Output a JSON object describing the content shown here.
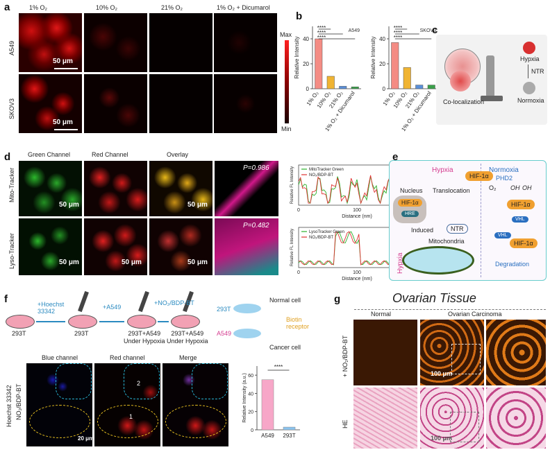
{
  "panels": {
    "a": "a",
    "b": "b",
    "c": "c",
    "d": "d",
    "e": "e",
    "f": "f",
    "g": "g"
  },
  "a": {
    "cols": [
      "1% O₂",
      "10% O₂",
      "21% O₂",
      "1% O₂ + Dicumarol"
    ],
    "rows": [
      "A549",
      "SKOV3"
    ],
    "scale": "50 μm",
    "cbar_max": "Max",
    "cbar_min": "Min"
  },
  "b": {
    "ylabel": "Relative Intensity",
    "sig": "****",
    "categories": [
      "1% O₂",
      "10% O₂",
      "21% O₂",
      "1% O₂ + Dicumarol"
    ]
  },
  "c": {
    "hypxia": "Hypxia",
    "ntr": "NTR",
    "normoxia": "Normoxia",
    "coloc": "Co-localization"
  },
  "d": {
    "cols": [
      "Green Channel",
      "Red Channel",
      "Overlay"
    ],
    "rows": [
      "Mito-Tracker",
      "Lyso-Tracker"
    ],
    "p1": "P=0.986",
    "p2": "P=0.482",
    "scale": "50 μm",
    "ylabel": "Relative FL Intensity",
    "xlabel": "Distance (nm)",
    "legend1": [
      "MitoTracker Green",
      "NO₂/BDP-BT"
    ],
    "legend2": [
      "LysoTracker Green",
      "NO₂/BDP-BT"
    ],
    "xticks": [
      "0",
      "100",
      "200"
    ]
  },
  "e": {
    "hypxia": "Hypxia",
    "normoxia": "Normoxia",
    "hif": "HIF-1α",
    "translocation": "Translocation",
    "nucleus": "Nucleus",
    "hre": "HRE",
    "ntr": "NTR",
    "induced": "Induced",
    "mito": "Mitochondria",
    "phd2": "PHD2",
    "o2": "O₂",
    "oh": "OH",
    "vhl": "VHL",
    "degradation": "Degradation",
    "hypxia_side": "Hypxia"
  },
  "f": {
    "steps": [
      "293T",
      "293T",
      "293T+A549\nUnder Hypoxia",
      "293T+A549\nUnder Hypoxia"
    ],
    "arrows": [
      "+Hoechst\n33342",
      "+A549",
      "+NO₂/BDP-BT"
    ],
    "cell_293t": "293T",
    "cell_a549": "A549",
    "normal": "Normal cell",
    "biotin": "Biotin\nreceptor",
    "cancer": "Cancer cell",
    "channels": [
      "Blue channel",
      "Red channel",
      "Merge"
    ],
    "row1": "Hoechst 33342",
    "row2": "NO₂/BDP-BT",
    "scale": "20 μm",
    "ylabel": "Relative Intensity (a.u.)",
    "sig": "****",
    "mark1": "1",
    "mark2": "2"
  },
  "g": {
    "title": "Ovarian Tissue",
    "normal": "Normal",
    "carcinoma": "Ovarian Carcinoma",
    "row1": "+ NO₂/BDP-BT",
    "row2": "HE",
    "scale": "100 μm"
  },
  "chart_data": [
    {
      "type": "bar",
      "title": "A549",
      "ylabel": "Relative Intensity",
      "categories": [
        "1% O₂",
        "10% O₂",
        "21% O₂",
        "1% O₂ + Dicumarol"
      ],
      "values": [
        40,
        10,
        2,
        1.5
      ],
      "ylim": [
        0,
        50
      ],
      "yticks": [
        0,
        20,
        40
      ],
      "colors": [
        "#f48c84",
        "#f0b432",
        "#5a8fd8",
        "#3aa04a"
      ]
    },
    {
      "type": "bar",
      "title": "SKOV3",
      "ylabel": "Relative Intensity",
      "categories": [
        "1% O₂",
        "10% O₂",
        "21% O₂",
        "1% O₂ + Dicumarol"
      ],
      "values": [
        37,
        17,
        3,
        3
      ],
      "ylim": [
        0,
        50
      ],
      "yticks": [
        0,
        20,
        40
      ],
      "colors": [
        "#f48c84",
        "#f0b432",
        "#5a8fd8",
        "#3aa04a"
      ]
    },
    {
      "type": "bar",
      "ylabel": "Relative Intensity (a.u.)",
      "categories": [
        "A549",
        "293T"
      ],
      "values": [
        55,
        3
      ],
      "ylim": [
        0,
        70
      ],
      "yticks": [
        0,
        20,
        40,
        60
      ],
      "colors": [
        "#f7a7c8",
        "#8ac4ef"
      ]
    },
    {
      "type": "line",
      "xlabel": "Distance (nm)",
      "ylabel": "Relative FL Intensity",
      "x": [
        0,
        200
      ],
      "series": [
        {
          "name": "MitoTracker Green"
        },
        {
          "name": "NO₂/BDP-BT"
        }
      ]
    },
    {
      "type": "line",
      "xlabel": "Distance (nm)",
      "ylabel": "Relative FL Intensity",
      "x": [
        0,
        200
      ],
      "series": [
        {
          "name": "LysoTracker Green"
        },
        {
          "name": "NO₂/BDP-BT"
        }
      ]
    }
  ]
}
